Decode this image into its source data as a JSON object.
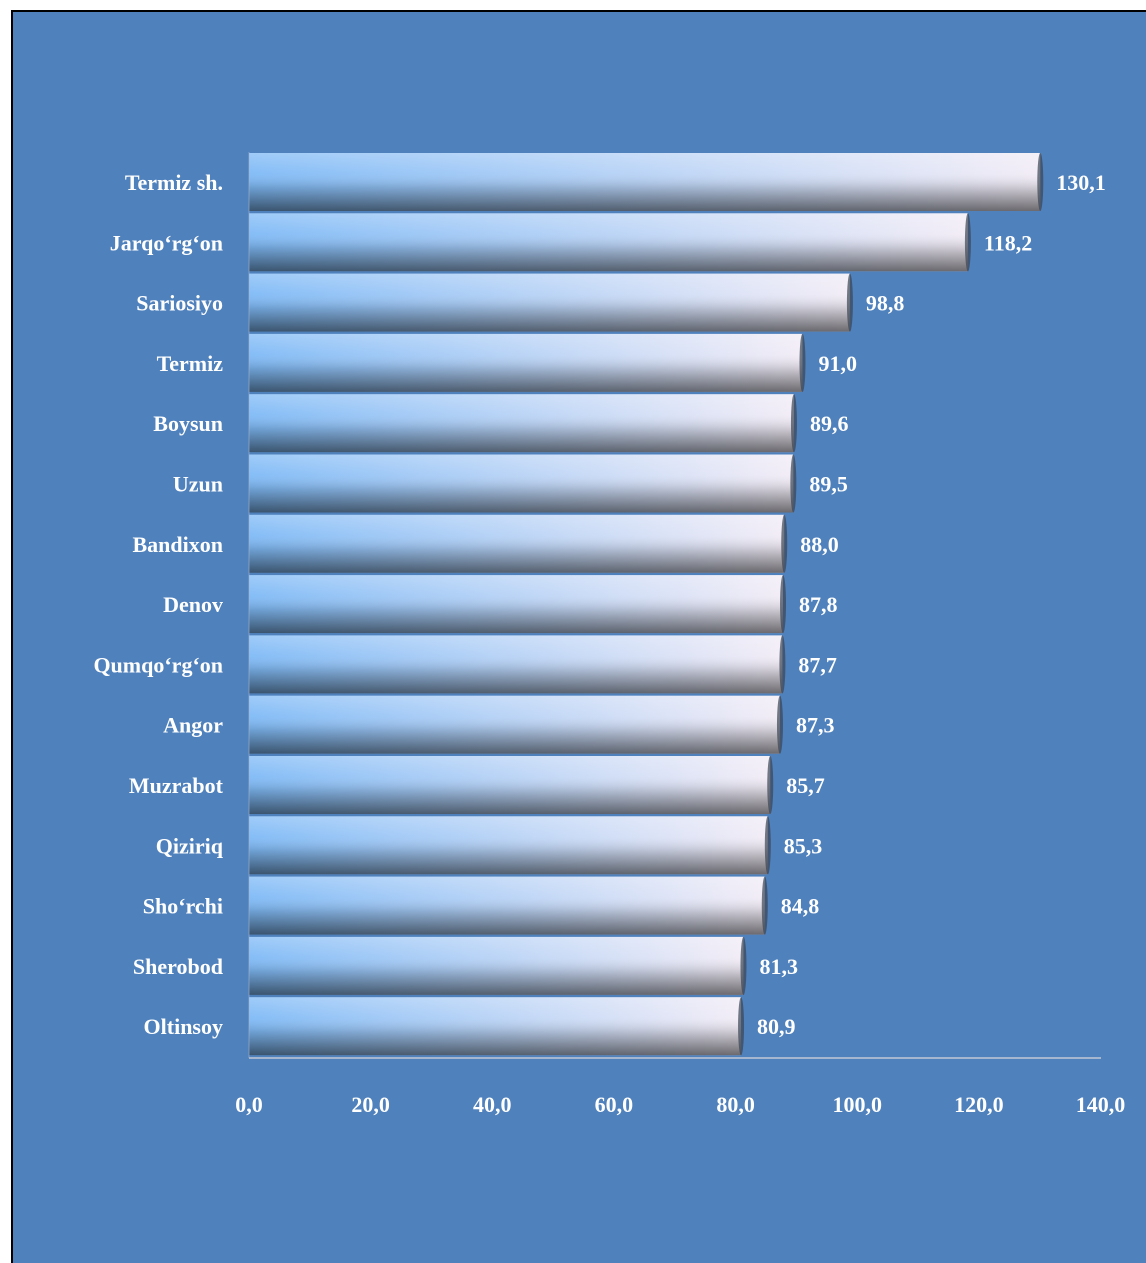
{
  "colors": {
    "background": "#4f81bd",
    "bar_start": "#7fbaf6",
    "bar_end": "#f2ecf6",
    "bar_shadow": "#3a4452",
    "axis": "#a6b6cf",
    "text": "#ffffff"
  },
  "chart_data": {
    "type": "bar",
    "orientation": "horizontal",
    "categories": [
      "Termiz sh.",
      "Jarqo‘rg‘on",
      "Sariosiyo",
      "Termiz",
      "Boysun",
      "Uzun",
      "Bandixon",
      "Denov",
      "Qumqo‘rg‘on",
      "Angor",
      "Muzrabot",
      "Qiziriq",
      "Sho‘rchi",
      "Sherobod",
      "Oltinsoy"
    ],
    "values": [
      130.1,
      118.2,
      98.8,
      91.0,
      89.6,
      89.5,
      88.0,
      87.8,
      87.7,
      87.3,
      85.7,
      85.3,
      84.8,
      81.3,
      80.9
    ],
    "value_labels": [
      "130,1",
      "118,2",
      "98,8",
      "91,0",
      "89,6",
      "89,5",
      "88,0",
      "87,8",
      "87,7",
      "87,3",
      "85,7",
      "85,3",
      "84,8",
      "81,3",
      "80,9"
    ],
    "xlim": [
      0,
      140
    ],
    "x_ticks": [
      0,
      20,
      40,
      60,
      80,
      100,
      120,
      140
    ],
    "x_tick_labels": [
      "0,0",
      "20,0",
      "40,0",
      "60,0",
      "80,0",
      "100,0",
      "120,0",
      "140,0"
    ],
    "title": "",
    "xlabel": "",
    "ylabel": "",
    "grid": false,
    "legend": "none"
  }
}
